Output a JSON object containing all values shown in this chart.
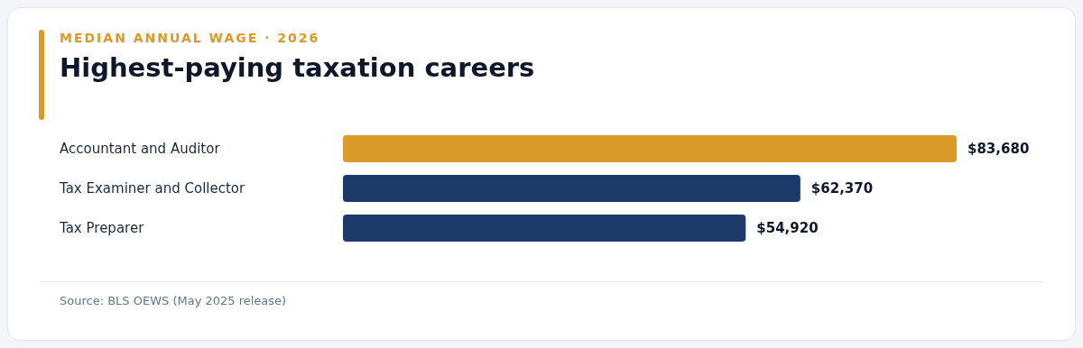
{
  "chart_data": {
    "type": "bar",
    "orientation": "horizontal",
    "subtitle": "MEDIAN ANNUAL WAGE · 2026",
    "title": "Highest-paying taxation careers",
    "categories": [
      "Accountant and Auditor",
      "Tax Examiner and Collector",
      "Tax Preparer"
    ],
    "values": [
      83680,
      62370,
      54920
    ],
    "colors": [
      "#d99a28",
      "#1e3a6b",
      "#1e3a6b"
    ],
    "value_labels": [
      "$83,680",
      "$62,370",
      "$54,920"
    ],
    "annotations": [
      "Source: BLS OEWS (May 2025 release)"
    ]
  }
}
